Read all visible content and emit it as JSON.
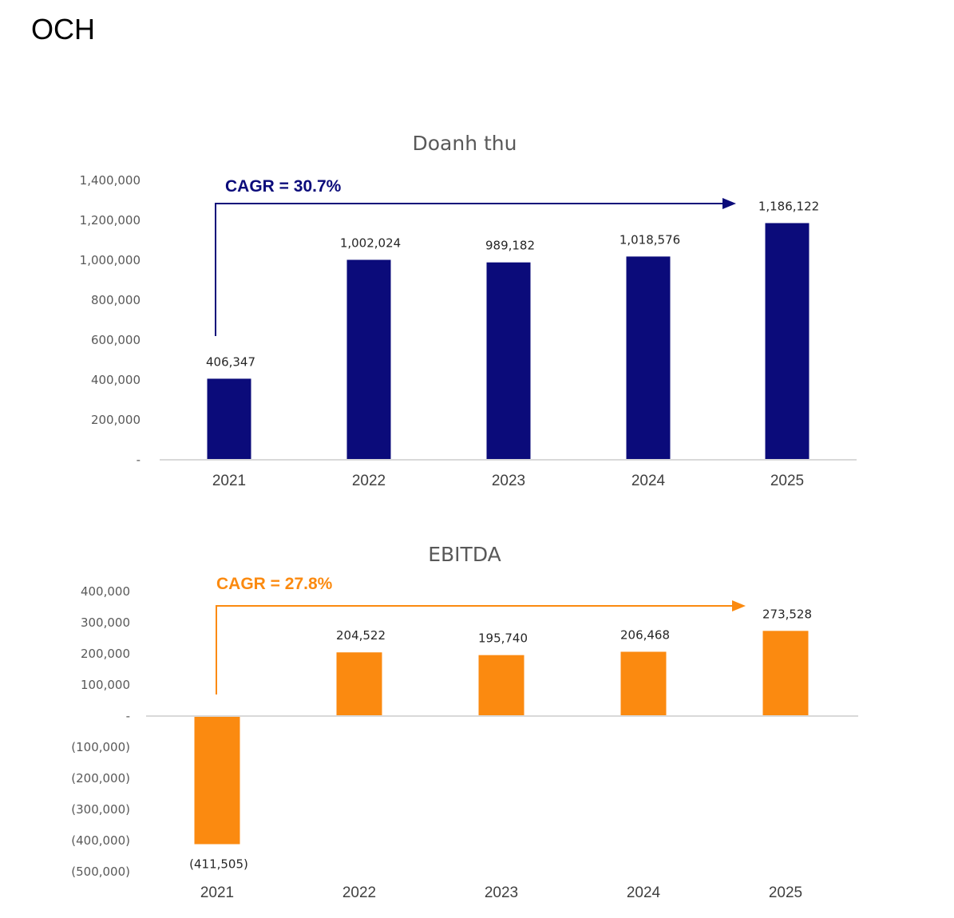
{
  "page_title": "OCH",
  "colors": {
    "revenue": "#0b0b7a",
    "ebitda": "#fb8a10"
  },
  "chart_data": [
    {
      "type": "bar",
      "title": "Doanh thu",
      "categories": [
        "2021",
        "2022",
        "2023",
        "2024",
        "2025"
      ],
      "values": [
        406347,
        1002024,
        989182,
        1018576,
        1186122
      ],
      "data_labels": [
        "406,347",
        "1,002,024",
        "989,182",
        "1,018,576",
        "1,186,122"
      ],
      "ylim": [
        0,
        1400000
      ],
      "yticks": [
        0,
        200000,
        400000,
        600000,
        800000,
        1000000,
        1200000,
        1400000
      ],
      "ytick_labels": [
        "-",
        "200,000",
        "400,000",
        "600,000",
        "800,000",
        "1,000,000",
        "1,200,000",
        "1,400,000"
      ],
      "grid": false,
      "annotation": "CAGR = 30.7%"
    },
    {
      "type": "bar",
      "title": "EBITDA",
      "categories": [
        "2021",
        "2022",
        "2023",
        "2024",
        "2025"
      ],
      "values": [
        -411505,
        204522,
        195740,
        206468,
        273528
      ],
      "data_labels": [
        "(411,505)",
        "204,522",
        "195,740",
        "206,468",
        "273,528"
      ],
      "ylim": [
        -500000,
        400000
      ],
      "yticks": [
        400000,
        300000,
        200000,
        100000,
        0,
        -100000,
        -200000,
        -300000,
        -400000,
        -500000
      ],
      "ytick_labels": [
        "400,000",
        "300,000",
        "200,000",
        "100,000",
        "-",
        "(100,000)",
        "(200,000)",
        "(300,000)",
        "(400,000)",
        "(500,000)"
      ],
      "grid": false,
      "annotation": "CAGR = 27.8%"
    }
  ]
}
